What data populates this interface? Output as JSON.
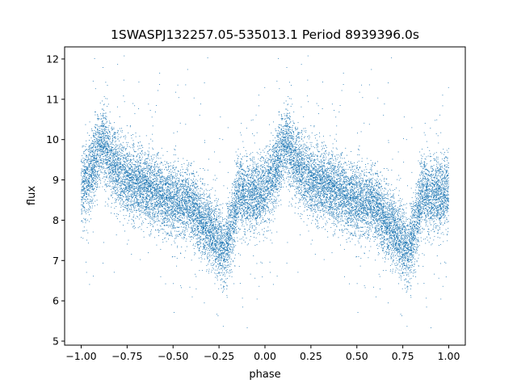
{
  "chart_data": {
    "type": "scatter",
    "title": "1SWASPJ132257.05-535013.1 Period 8939396.0s",
    "xlabel": "phase",
    "ylabel": "flux",
    "xlim": [
      -1.09,
      1.09
    ],
    "ylim": [
      4.9,
      12.3
    ],
    "xticks": [
      "−1.00",
      "−0.75",
      "−0.50",
      "−0.25",
      "0.00",
      "0.25",
      "0.50",
      "0.75",
      "1.00"
    ],
    "xtick_values": [
      -1.0,
      -0.75,
      -0.5,
      -0.25,
      0.0,
      0.25,
      0.5,
      0.75,
      1.0
    ],
    "yticks": [
      "5",
      "6",
      "7",
      "8",
      "9",
      "10",
      "11",
      "12"
    ],
    "ytick_values": [
      5,
      6,
      7,
      8,
      9,
      10,
      11,
      12
    ],
    "grid": false,
    "marker_color": "#1f77b4",
    "series": [
      {
        "profile_phase": [
          0.0,
          0.05,
          0.08,
          0.12,
          0.15,
          0.2,
          0.3,
          0.4,
          0.5,
          0.6,
          0.65,
          0.7,
          0.73,
          0.75,
          0.78,
          0.8,
          0.83,
          0.85,
          0.9,
          0.95,
          1.0
        ],
        "profile_flux": [
          8.7,
          9.1,
          9.6,
          10.0,
          9.6,
          9.2,
          8.9,
          8.7,
          8.5,
          8.4,
          8.0,
          7.8,
          7.6,
          7.4,
          7.3,
          7.6,
          8.0,
          8.7,
          8.6,
          8.6,
          8.7
        ],
        "scatter_sigma": 0.45,
        "point_count": 9000,
        "mirrored": true
      }
    ]
  }
}
